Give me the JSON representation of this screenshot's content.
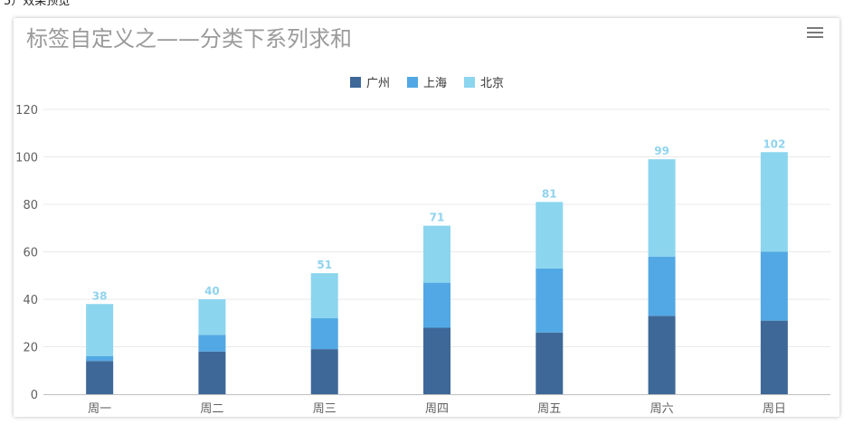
{
  "page": {
    "caption": "5）效果预览"
  },
  "ui": {
    "menu_icon": "hamburger-menu-icon"
  },
  "chart_data": {
    "type": "bar",
    "stacked": true,
    "title": "标签自定义之——分类下系列求和",
    "categories": [
      "周一",
      "周二",
      "周三",
      "周四",
      "周五",
      "周六",
      "周日"
    ],
    "series": [
      {
        "name": "广州",
        "color": "#3e6898",
        "values": [
          14,
          18,
          19,
          28,
          26,
          33,
          31
        ]
      },
      {
        "name": "上海",
        "color": "#52a8e4",
        "values": [
          2,
          7,
          13,
          19,
          27,
          25,
          29
        ]
      },
      {
        "name": "北京",
        "color": "#8cd5ef",
        "values": [
          22,
          15,
          19,
          24,
          28,
          41,
          42
        ]
      }
    ],
    "totals": [
      "38",
      "40",
      "51",
      "71",
      "81",
      "99",
      "102"
    ],
    "ylim": [
      0,
      120
    ],
    "yticks": [
      "0",
      "20",
      "40",
      "60",
      "80",
      "100",
      "120"
    ],
    "grid": true,
    "legend": "top-center",
    "xlabel": "",
    "ylabel": ""
  }
}
